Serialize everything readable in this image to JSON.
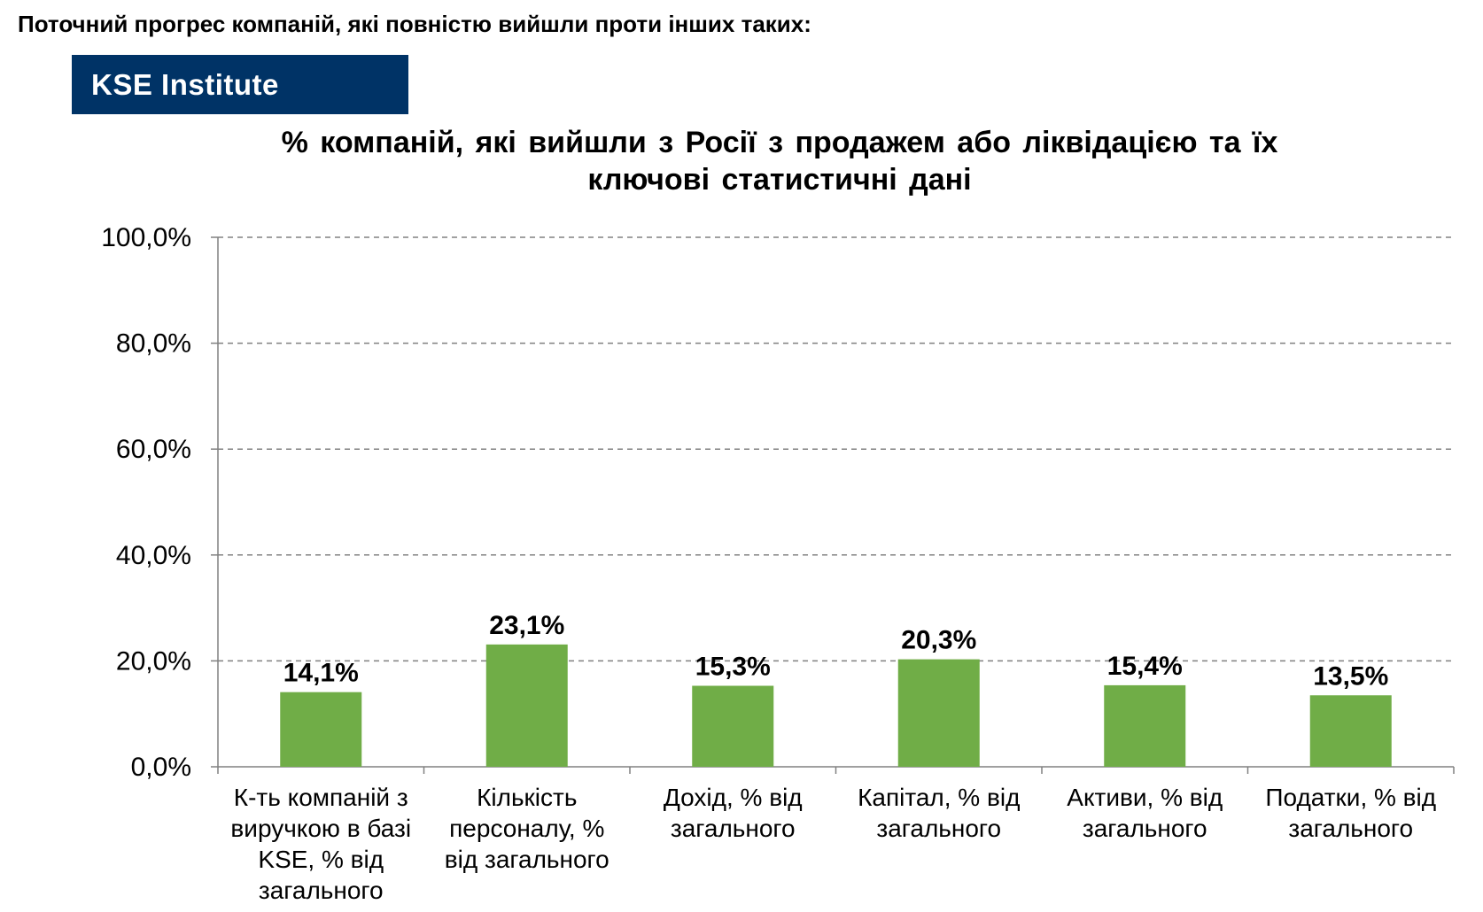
{
  "heading": "Поточний прогрес компаній, які повністю вийшли проти інших таких:",
  "brand": "KSE Institute",
  "chart_data": {
    "type": "bar",
    "title": "% компаній, які вийшли з Росії з продажем або ліквідацією та їх ключові статистичні дані",
    "title_lines": [
      "% компаній, які вийшли з Росії з продажем або ліквідацією та їх",
      "ключові статистичні дані"
    ],
    "categories": [
      "К-ть компаній з виручкою в базі KSE, % від загального",
      "Кількість персоналу, % від загального",
      "Дохід, % від загального",
      "Капітал, % від загального",
      "Активи, % від загального",
      "Податки, % від загального"
    ],
    "category_lines": [
      [
        "К-ть компаній з",
        "виручкою в базі",
        "KSE, % від",
        "загального"
      ],
      [
        "Кількість",
        "персоналу, %",
        "від загального"
      ],
      [
        "Дохід, % від",
        "загального"
      ],
      [
        "Капітал, % від",
        "загального"
      ],
      [
        "Активи, % від",
        "загального"
      ],
      [
        "Податки, % від",
        "загального"
      ]
    ],
    "values": [
      14.1,
      23.1,
      15.3,
      20.3,
      15.4,
      13.5
    ],
    "value_labels": [
      "14,1%",
      "23,1%",
      "15,3%",
      "20,3%",
      "15,4%",
      "13,5%"
    ],
    "yticks": [
      0,
      20,
      40,
      60,
      80,
      100
    ],
    "ytick_labels": [
      "0,0%",
      "20,0%",
      "40,0%",
      "60,0%",
      "80,0%",
      "100,0%"
    ],
    "ylim": [
      0,
      100
    ],
    "grid": true,
    "bar_color": "#70AD47"
  }
}
